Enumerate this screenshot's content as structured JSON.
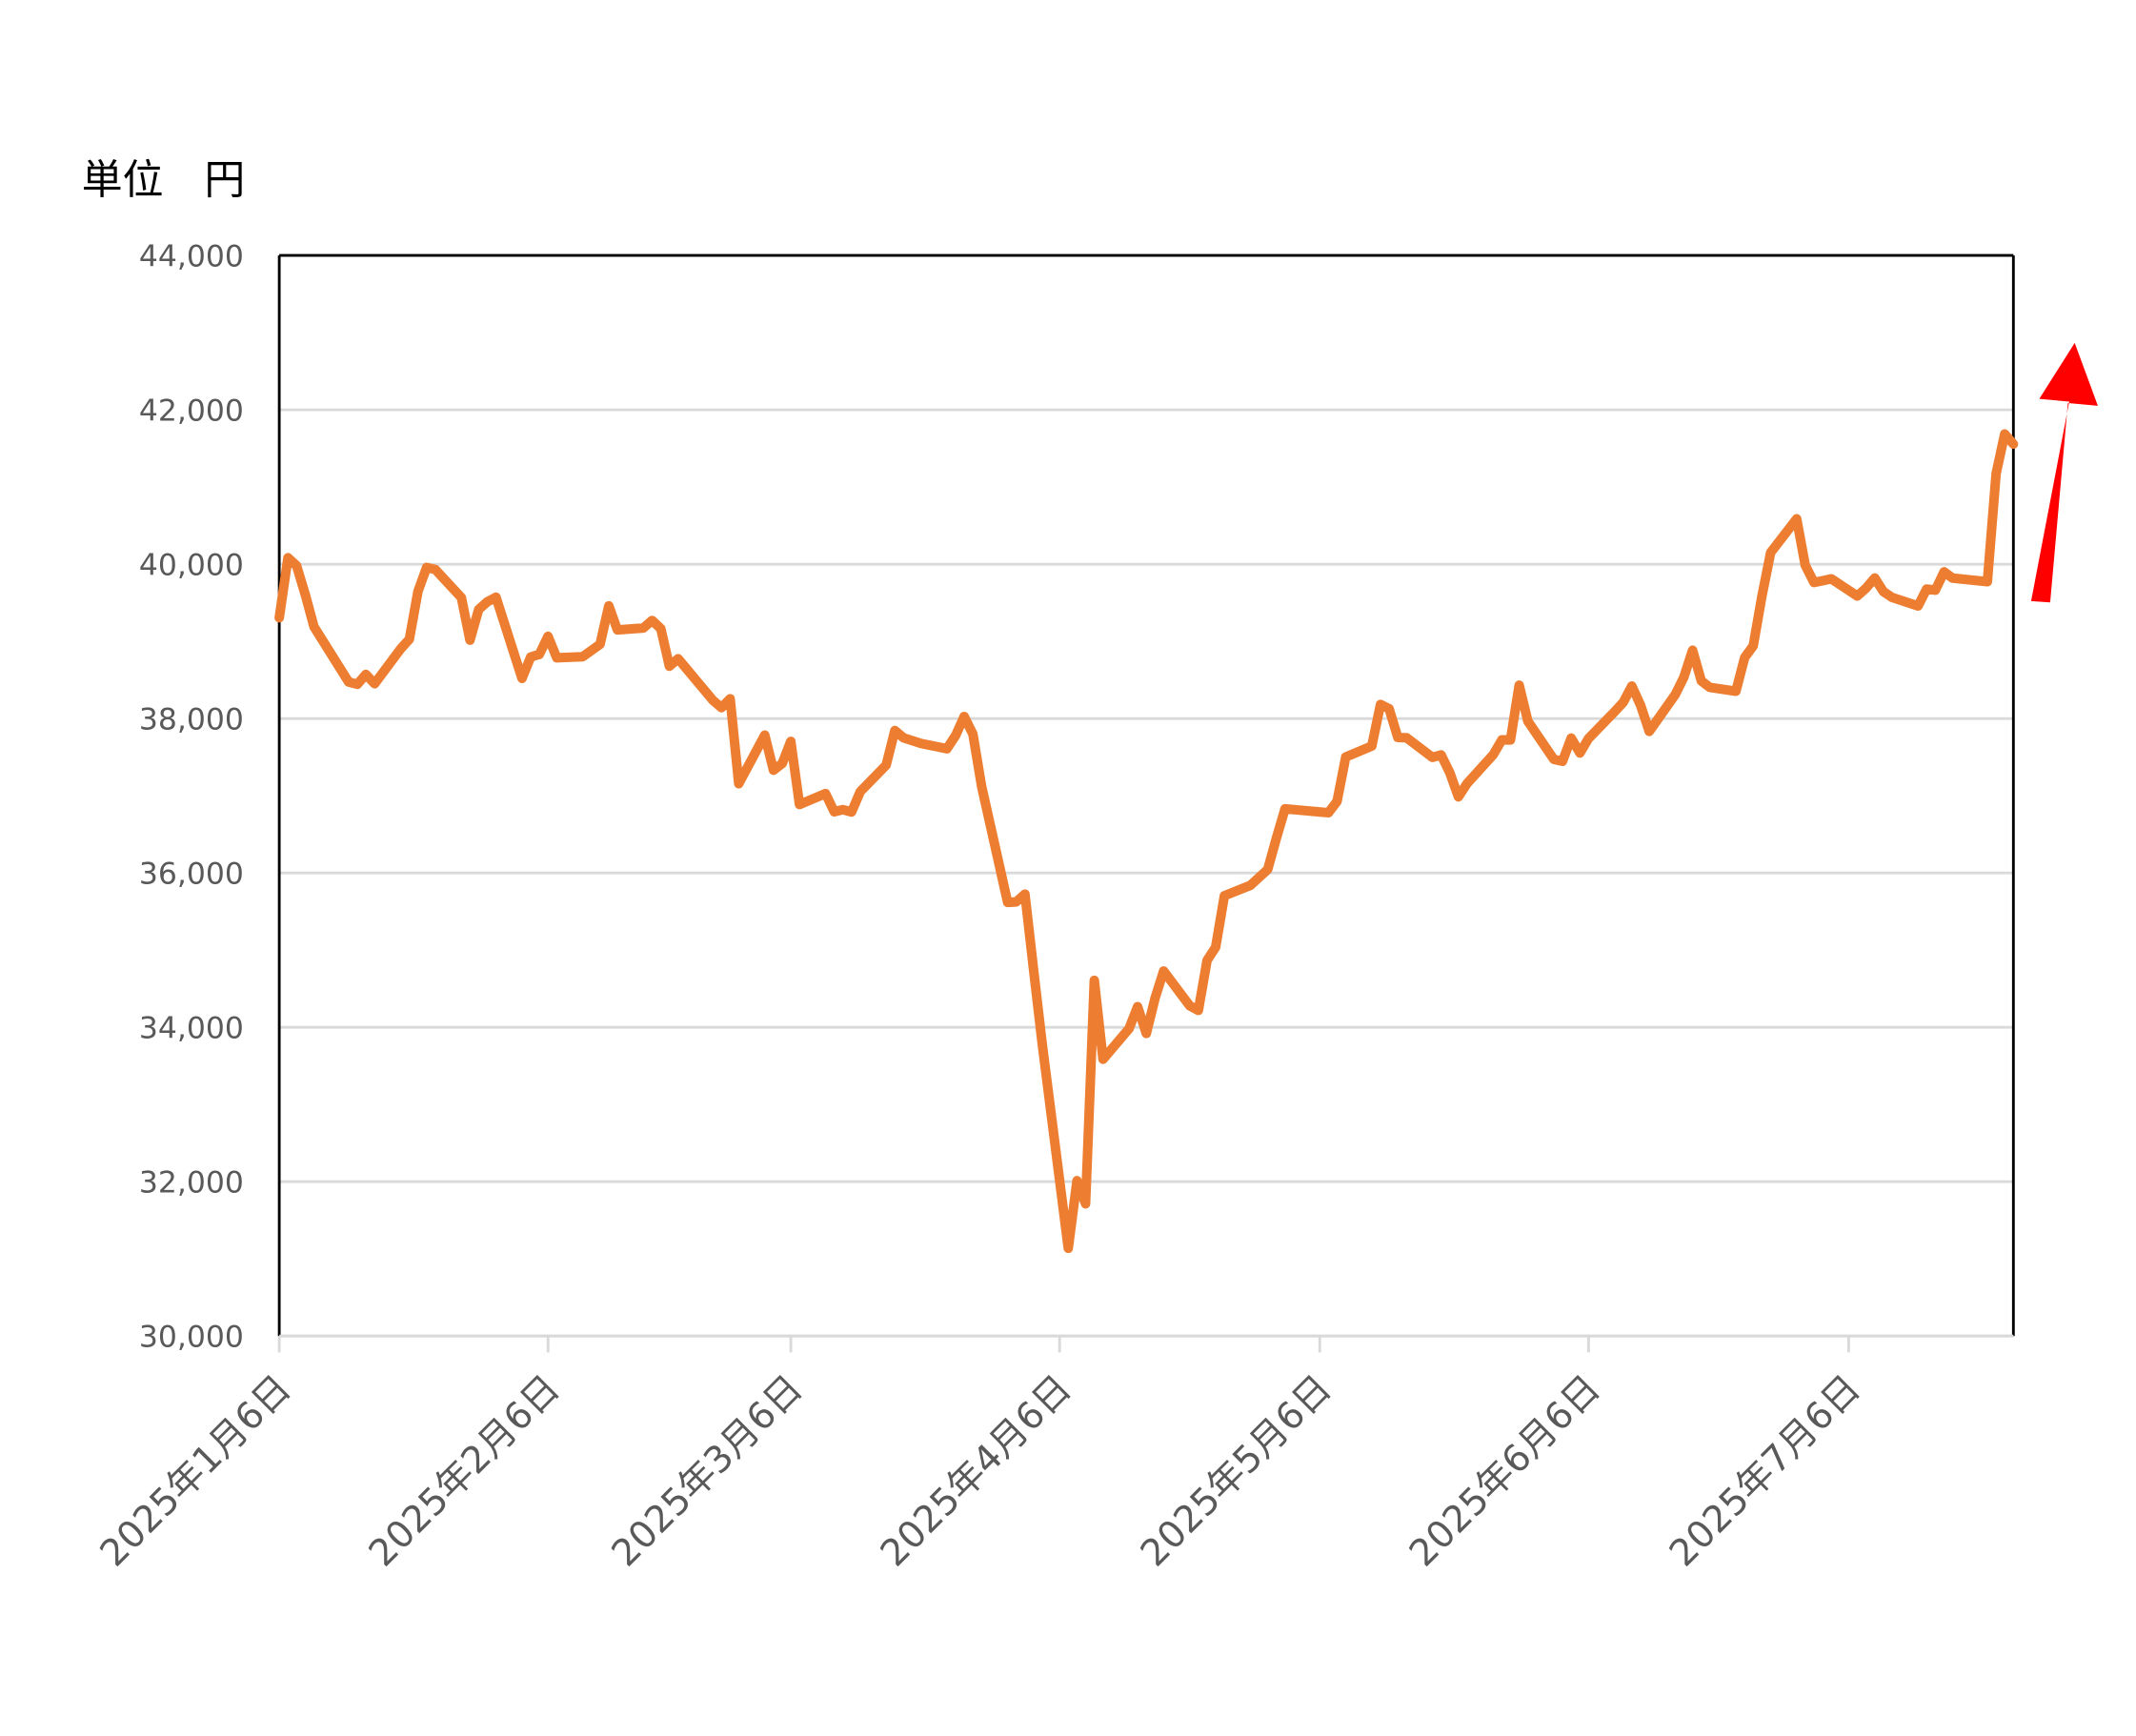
{
  "chart_data": {
    "type": "line",
    "ylabel": "単位　円",
    "color": "#ed7d31",
    "grid": true,
    "x": [
      "2025-01-06",
      "2025-01-07",
      "2025-01-08",
      "2025-01-09",
      "2025-01-10",
      "2025-01-14",
      "2025-01-15",
      "2025-01-16",
      "2025-01-17",
      "2025-01-20",
      "2025-01-21",
      "2025-01-22",
      "2025-01-23",
      "2025-01-24",
      "2025-01-27",
      "2025-01-28",
      "2025-01-29",
      "2025-01-30",
      "2025-01-31",
      "2025-02-03",
      "2025-02-04",
      "2025-02-05",
      "2025-02-06",
      "2025-02-07",
      "2025-02-10",
      "2025-02-12",
      "2025-02-13",
      "2025-02-14",
      "2025-02-17",
      "2025-02-18",
      "2025-02-19",
      "2025-02-20",
      "2025-02-21",
      "2025-02-25",
      "2025-02-26",
      "2025-02-27",
      "2025-02-28",
      "2025-03-03",
      "2025-03-04",
      "2025-03-05",
      "2025-03-06",
      "2025-03-07",
      "2025-03-10",
      "2025-03-11",
      "2025-03-12",
      "2025-03-13",
      "2025-03-14",
      "2025-03-17",
      "2025-03-18",
      "2025-03-19",
      "2025-03-21",
      "2025-03-24",
      "2025-03-25",
      "2025-03-26",
      "2025-03-27",
      "2025-03-28",
      "2025-03-31",
      "2025-04-01",
      "2025-04-02",
      "2025-04-03",
      "2025-04-04",
      "2025-04-07",
      "2025-04-08",
      "2025-04-09",
      "2025-04-10",
      "2025-04-11",
      "2025-04-14",
      "2025-04-15",
      "2025-04-16",
      "2025-04-17",
      "2025-04-18",
      "2025-04-21",
      "2025-04-22",
      "2025-04-23",
      "2025-04-24",
      "2025-04-25",
      "2025-04-28",
      "2025-04-30",
      "2025-05-01",
      "2025-05-02",
      "2025-05-07",
      "2025-05-08",
      "2025-05-09",
      "2025-05-12",
      "2025-05-13",
      "2025-05-14",
      "2025-05-15",
      "2025-05-16",
      "2025-05-19",
      "2025-05-20",
      "2025-05-21",
      "2025-05-22",
      "2025-05-23",
      "2025-05-26",
      "2025-05-27",
      "2025-05-28",
      "2025-05-29",
      "2025-05-30",
      "2025-06-02",
      "2025-06-03",
      "2025-06-04",
      "2025-06-05",
      "2025-06-06",
      "2025-06-09",
      "2025-06-10",
      "2025-06-11",
      "2025-06-12",
      "2025-06-13",
      "2025-06-16",
      "2025-06-17",
      "2025-06-18",
      "2025-06-19",
      "2025-06-20",
      "2025-06-23",
      "2025-06-24",
      "2025-06-25",
      "2025-06-26",
      "2025-06-27",
      "2025-06-30",
      "2025-07-01",
      "2025-07-02",
      "2025-07-03",
      "2025-07-04",
      "2025-07-07",
      "2025-07-08",
      "2025-07-09",
      "2025-07-10",
      "2025-07-11",
      "2025-07-14",
      "2025-07-15",
      "2025-07-16",
      "2025-07-17",
      "2025-07-18",
      "2025-07-22",
      "2025-07-23",
      "2025-07-24",
      "2025-07-25"
    ],
    "values": [
      39307,
      40083,
      39981,
      39605,
      39190,
      38474,
      38445,
      38572,
      38451,
      38903,
      39028,
      39646,
      39958,
      39931,
      39566,
      39016,
      39414,
      39513,
      39572,
      38520,
      38798,
      38831,
      39066,
      38787,
      38801,
      38963,
      39461,
      39149,
      39174,
      39270,
      39164,
      38678,
      38776,
      38237,
      38142,
      38256,
      37155,
      37785,
      37331,
      37418,
      37704,
      36887,
      37028,
      36793,
      36819,
      36790,
      37053,
      37396,
      37845,
      37751,
      37677,
      37608,
      37780,
      38027,
      37799,
      37120,
      35617,
      35624,
      35725,
      34735,
      33780,
      31136,
      32012,
      31714,
      34609,
      33585,
      33982,
      34267,
      33920,
      34377,
      34730,
      34280,
      34220,
      34868,
      35039,
      35705,
      35839,
      36045,
      36452,
      36830,
      36780,
      36928,
      37503,
      37644,
      38183,
      38128,
      37755,
      37753,
      37498,
      37529,
      37298,
      36985,
      37160,
      37531,
      37724,
      37722,
      38432,
      37965,
      37470,
      37446,
      37747,
      37554,
      37741,
      38088,
      38211,
      38421,
      38173,
      37834,
      38311,
      38536,
      38885,
      38488,
      38403,
      38354,
      38790,
      38942,
      39585,
      40150,
      40587,
      39986,
      39762,
      39785,
      39810,
      39587,
      39688,
      39821,
      39646,
      39570,
      39459,
      39678,
      39663,
      39901,
      39819,
      39774,
      41171,
      41686,
      41556
    ],
    "xlim": [
      "2025-01-06",
      "2025-07-25"
    ],
    "xticks": [
      {
        "value": "2025-01-06",
        "label": "2025年1月6日"
      },
      {
        "value": "2025-02-06",
        "label": "2025年2月6日"
      },
      {
        "value": "2025-03-06",
        "label": "2025年3月6日"
      },
      {
        "value": "2025-04-06",
        "label": "2025年4月6日"
      },
      {
        "value": "2025-05-06",
        "label": "2025年5月6日"
      },
      {
        "value": "2025-06-06",
        "label": "2025年6月6日"
      },
      {
        "value": "2025-07-06",
        "label": "2025年7月6日"
      }
    ],
    "ylim": [
      30000,
      44000
    ],
    "yticks": [
      {
        "value": 30000,
        "label": "30,000"
      },
      {
        "value": 32000,
        "label": "32,000"
      },
      {
        "value": 34000,
        "label": "34,000"
      },
      {
        "value": 36000,
        "label": "36,000"
      },
      {
        "value": 38000,
        "label": "38,000"
      },
      {
        "value": 40000,
        "label": "40,000"
      },
      {
        "value": 42000,
        "label": "42,000"
      },
      {
        "value": 44000,
        "label": "44,000"
      }
    ]
  }
}
